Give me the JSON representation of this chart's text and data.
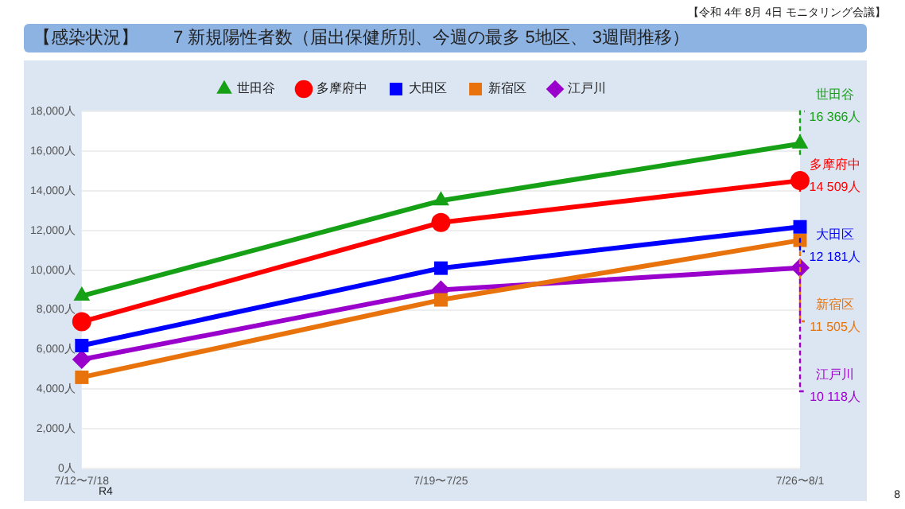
{
  "chart_data": {
    "type": "line",
    "title": "【感染状況】　　7 新規陽性者数（届出保健所別、今週の最多 5地区、 3週間推移）",
    "annotations": [
      "【令和 4年 8月 4日 モニタリング会議】",
      "R4",
      "8"
    ],
    "categories": [
      "7/12〜7/18",
      "7/19〜7/25",
      "7/26〜8/1"
    ],
    "series": [
      {
        "name": "世田谷",
        "color": "#16a016",
        "marker": "triangle",
        "values": [
          8700,
          13500,
          16366
        ],
        "value_labels": [
          null,
          null,
          "16 366人"
        ]
      },
      {
        "name": "多摩府中",
        "color": "#ff0000",
        "marker": "circle",
        "values": [
          7400,
          12400,
          14509
        ],
        "value_labels": [
          null,
          null,
          "14 509人"
        ]
      },
      {
        "name": "大田区",
        "color": "#0000ff",
        "marker": "square",
        "values": [
          6200,
          10100,
          12181
        ],
        "value_labels": [
          null,
          null,
          "12 181人"
        ]
      },
      {
        "name": "新宿区",
        "color": "#e8730c",
        "marker": "square",
        "values": [
          4600,
          8500,
          11505
        ],
        "value_labels": [
          null,
          null,
          "11 505人"
        ]
      },
      {
        "name": "江戸川",
        "color": "#9900cc",
        "marker": "diamond",
        "values": [
          5500,
          9000,
          10118
        ],
        "value_labels": [
          null,
          null,
          "10 118人"
        ]
      }
    ],
    "ylim": [
      0,
      18000
    ],
    "yticks": [
      {
        "value": 0,
        "label": "0人"
      },
      {
        "value": 2000,
        "label": "2,000人"
      },
      {
        "value": 4000,
        "label": "4,000人"
      },
      {
        "value": 6000,
        "label": "6,000人"
      },
      {
        "value": 8000,
        "label": "8,000人"
      },
      {
        "value": 10000,
        "label": "10,000人"
      },
      {
        "value": 12000,
        "label": "12,000人"
      },
      {
        "value": 14000,
        "label": "14,000人"
      },
      {
        "value": 16000,
        "label": "16,000人"
      },
      {
        "value": 18000,
        "label": "18,000人"
      }
    ],
    "grid": "y",
    "legend": "top",
    "line_style": "solid"
  }
}
